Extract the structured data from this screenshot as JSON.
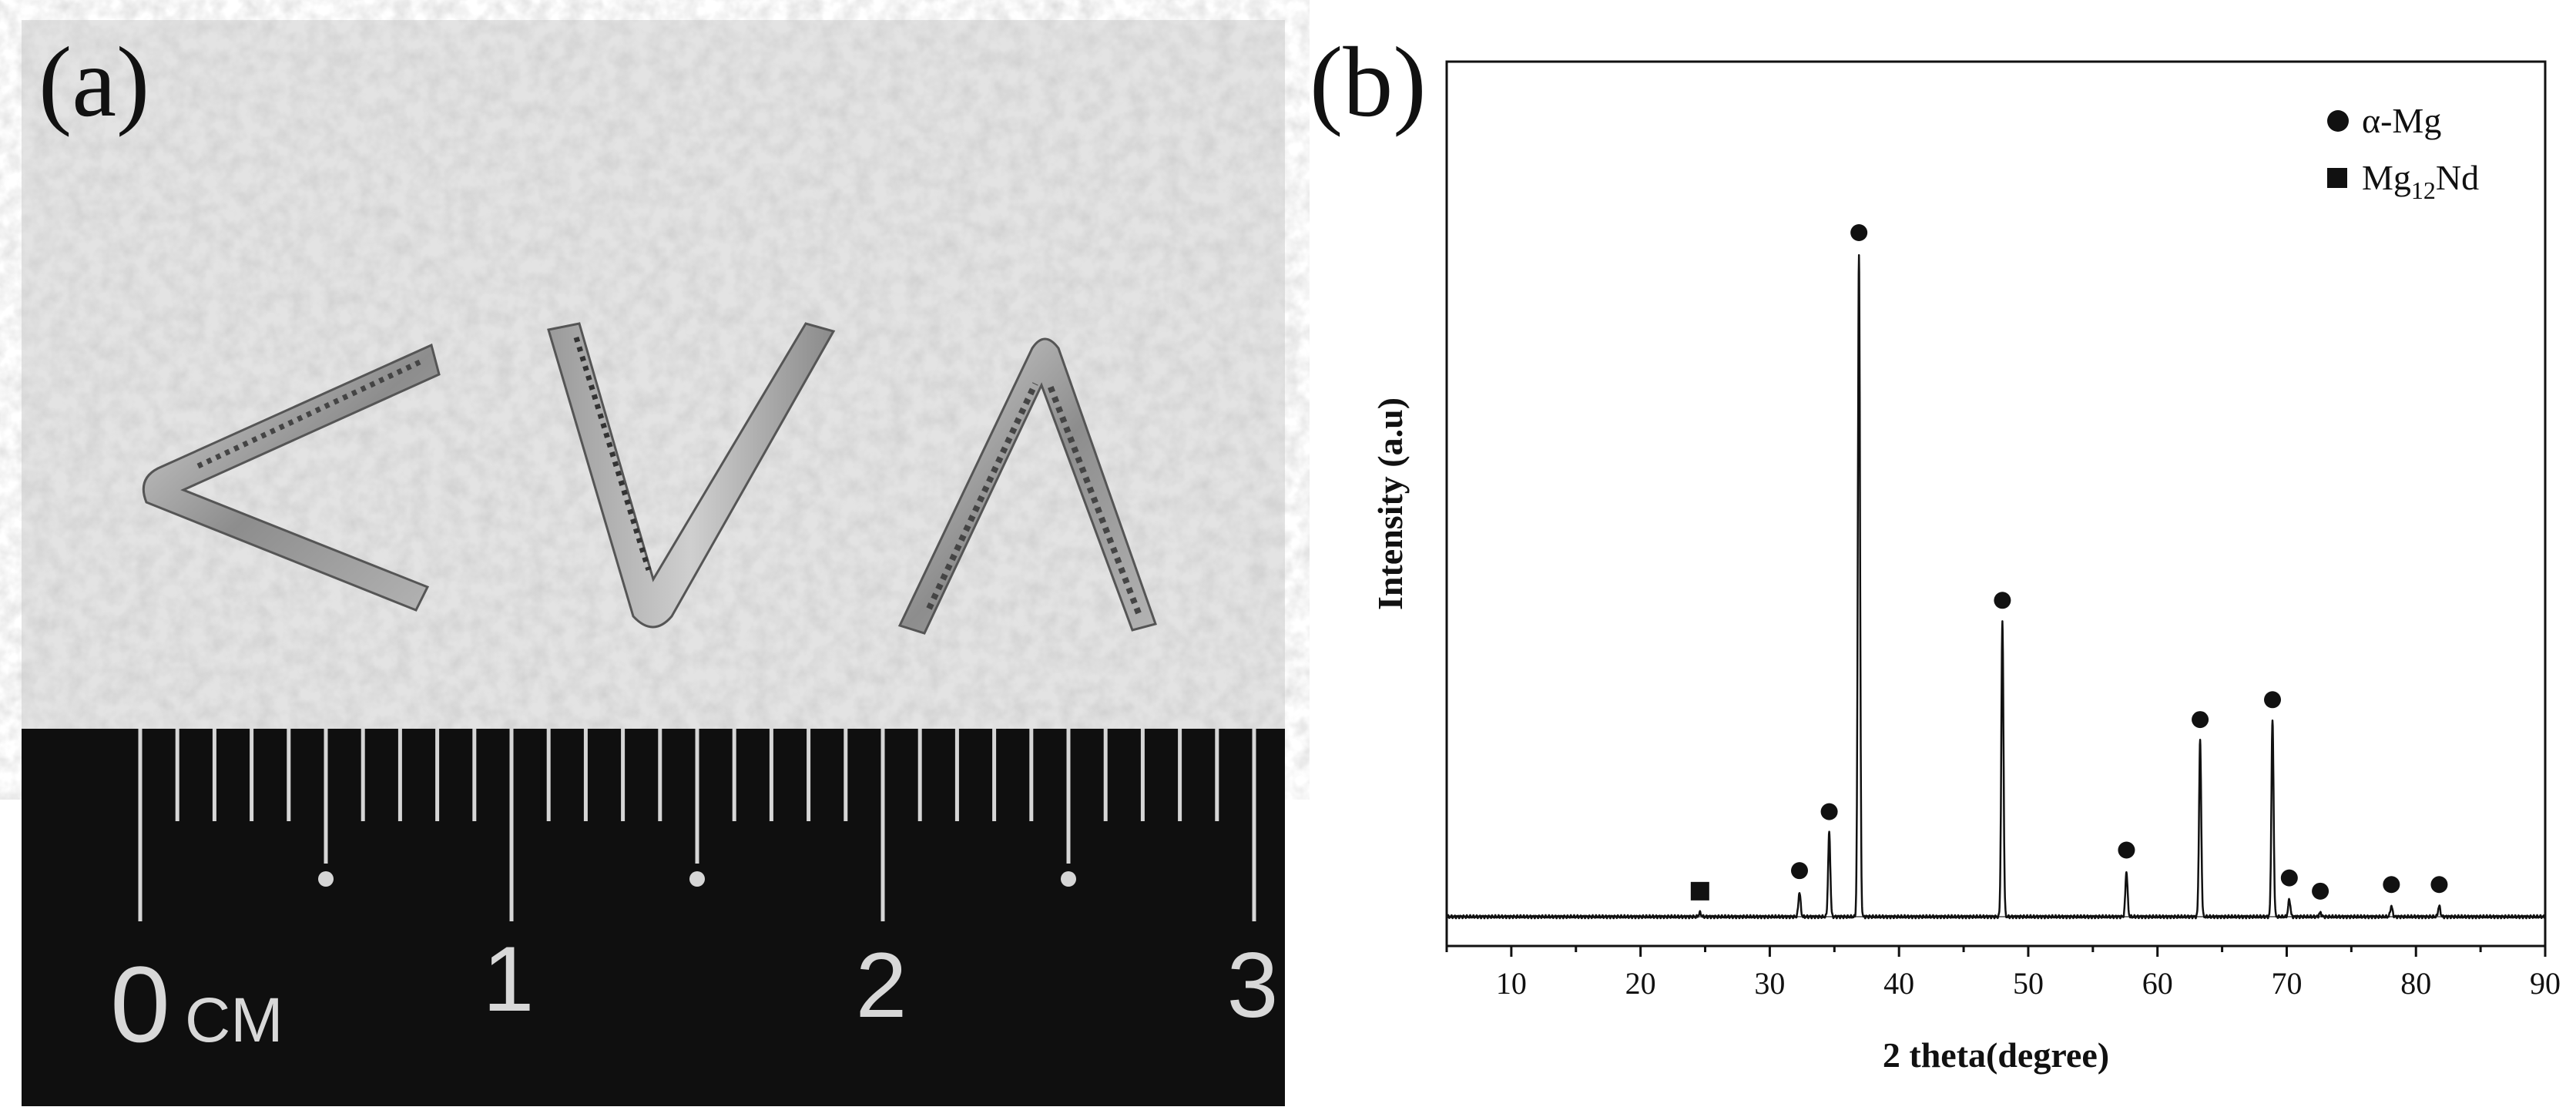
{
  "panel_a": {
    "label": "(a)",
    "ruler": {
      "numbers": [
        "0",
        "1",
        "2",
        "3"
      ],
      "unit": "CM"
    }
  },
  "panel_b": {
    "label": "(b)"
  },
  "chart_data": {
    "type": "line",
    "title": "",
    "xlabel": "2 theta(degree)",
    "ylabel": "Intensity (a.u)",
    "xlim": [
      5,
      90
    ],
    "ylim": [
      0,
      100
    ],
    "xticks": [
      10,
      20,
      30,
      40,
      50,
      60,
      70,
      80,
      90
    ],
    "legend_placement": "top-right",
    "legend": [
      {
        "marker": "circle",
        "label": "α-Mg",
        "label_main": "α-Mg",
        "label_sub": "",
        "label_tail": ""
      },
      {
        "marker": "square",
        "label": "Mg12Nd",
        "label_main": "Mg",
        "label_sub": "12",
        "label_tail": "Nd"
      }
    ],
    "peaks": [
      {
        "x": 24.6,
        "y": 0.6,
        "phase": "Mg12Nd"
      },
      {
        "x": 32.3,
        "y": 3.7,
        "phase": "α-Mg"
      },
      {
        "x": 34.6,
        "y": 12.6,
        "phase": "α-Mg"
      },
      {
        "x": 36.9,
        "y": 100,
        "phase": "α-Mg"
      },
      {
        "x": 48.0,
        "y": 44.5,
        "phase": "α-Mg"
      },
      {
        "x": 57.6,
        "y": 6.8,
        "phase": "α-Mg"
      },
      {
        "x": 63.3,
        "y": 26.5,
        "phase": "α-Mg"
      },
      {
        "x": 68.9,
        "y": 29.5,
        "phase": "α-Mg"
      },
      {
        "x": 70.2,
        "y": 2.6,
        "phase": "α-Mg"
      },
      {
        "x": 72.6,
        "y": 0.6,
        "phase": "α-Mg"
      },
      {
        "x": 78.1,
        "y": 1.6,
        "phase": "α-Mg"
      },
      {
        "x": 81.8,
        "y": 1.6,
        "phase": "α-Mg"
      }
    ]
  }
}
